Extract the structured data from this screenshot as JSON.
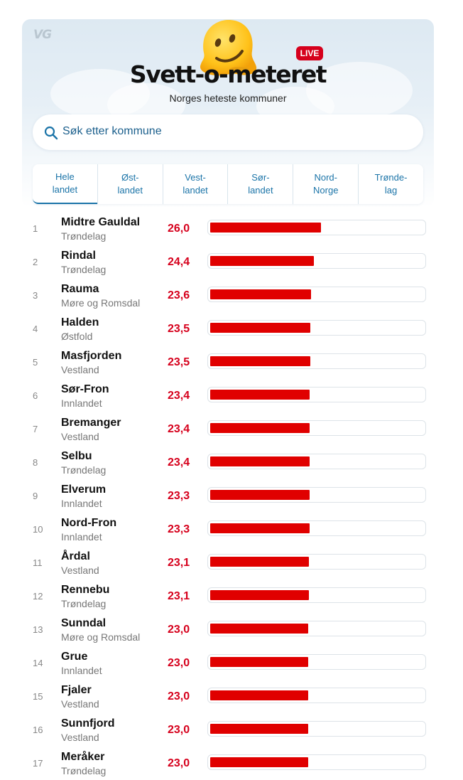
{
  "header": {
    "logo": "VG",
    "live_badge": "LIVE",
    "title": "Svett-o-meteret",
    "subtitle": "Norges heteste kommuner"
  },
  "search": {
    "placeholder": "Søk etter kommune",
    "icon": "search-icon"
  },
  "tabs": [
    {
      "label": "Hele\nlandet",
      "active": true
    },
    {
      "label": "Øst-\nlandet",
      "active": false
    },
    {
      "label": "Vest-\nlandet",
      "active": false
    },
    {
      "label": "Sør-\nlandet",
      "active": false
    },
    {
      "label": "Nord-\nNorge",
      "active": false
    },
    {
      "label": "Trønde-\nlag",
      "active": false
    }
  ],
  "colors": {
    "accent": "#1b74a8",
    "bar": "#e00000",
    "temperature": "#d6001c"
  },
  "scale_max": 50,
  "rows": [
    {
      "rank": "1",
      "name": "Midtre Gauldal",
      "region": "Trøndelag",
      "temp": "26,0",
      "value": 26.0
    },
    {
      "rank": "2",
      "name": "Rindal",
      "region": "Trøndelag",
      "temp": "24,4",
      "value": 24.4
    },
    {
      "rank": "3",
      "name": "Rauma",
      "region": "Møre og Romsdal",
      "temp": "23,6",
      "value": 23.6
    },
    {
      "rank": "4",
      "name": "Halden",
      "region": "Østfold",
      "temp": "23,5",
      "value": 23.5
    },
    {
      "rank": "5",
      "name": "Masfjorden",
      "region": "Vestland",
      "temp": "23,5",
      "value": 23.5
    },
    {
      "rank": "6",
      "name": "Sør-Fron",
      "region": "Innlandet",
      "temp": "23,4",
      "value": 23.4
    },
    {
      "rank": "7",
      "name": "Bremanger",
      "region": "Vestland",
      "temp": "23,4",
      "value": 23.4
    },
    {
      "rank": "8",
      "name": "Selbu",
      "region": "Trøndelag",
      "temp": "23,4",
      "value": 23.4
    },
    {
      "rank": "9",
      "name": "Elverum",
      "region": "Innlandet",
      "temp": "23,3",
      "value": 23.3
    },
    {
      "rank": "10",
      "name": "Nord-Fron",
      "region": "Innlandet",
      "temp": "23,3",
      "value": 23.3
    },
    {
      "rank": "11",
      "name": "Årdal",
      "region": "Vestland",
      "temp": "23,1",
      "value": 23.1
    },
    {
      "rank": "12",
      "name": "Rennebu",
      "region": "Trøndelag",
      "temp": "23,1",
      "value": 23.1
    },
    {
      "rank": "13",
      "name": "Sunndal",
      "region": "Møre og Romsdal",
      "temp": "23,0",
      "value": 23.0
    },
    {
      "rank": "14",
      "name": "Grue",
      "region": "Innlandet",
      "temp": "23,0",
      "value": 23.0
    },
    {
      "rank": "15",
      "name": "Fjaler",
      "region": "Vestland",
      "temp": "23,0",
      "value": 23.0
    },
    {
      "rank": "16",
      "name": "Sunnfjord",
      "region": "Vestland",
      "temp": "23,0",
      "value": 23.0
    },
    {
      "rank": "17",
      "name": "Meråker",
      "region": "Trøndelag",
      "temp": "23,0",
      "value": 23.0
    }
  ]
}
